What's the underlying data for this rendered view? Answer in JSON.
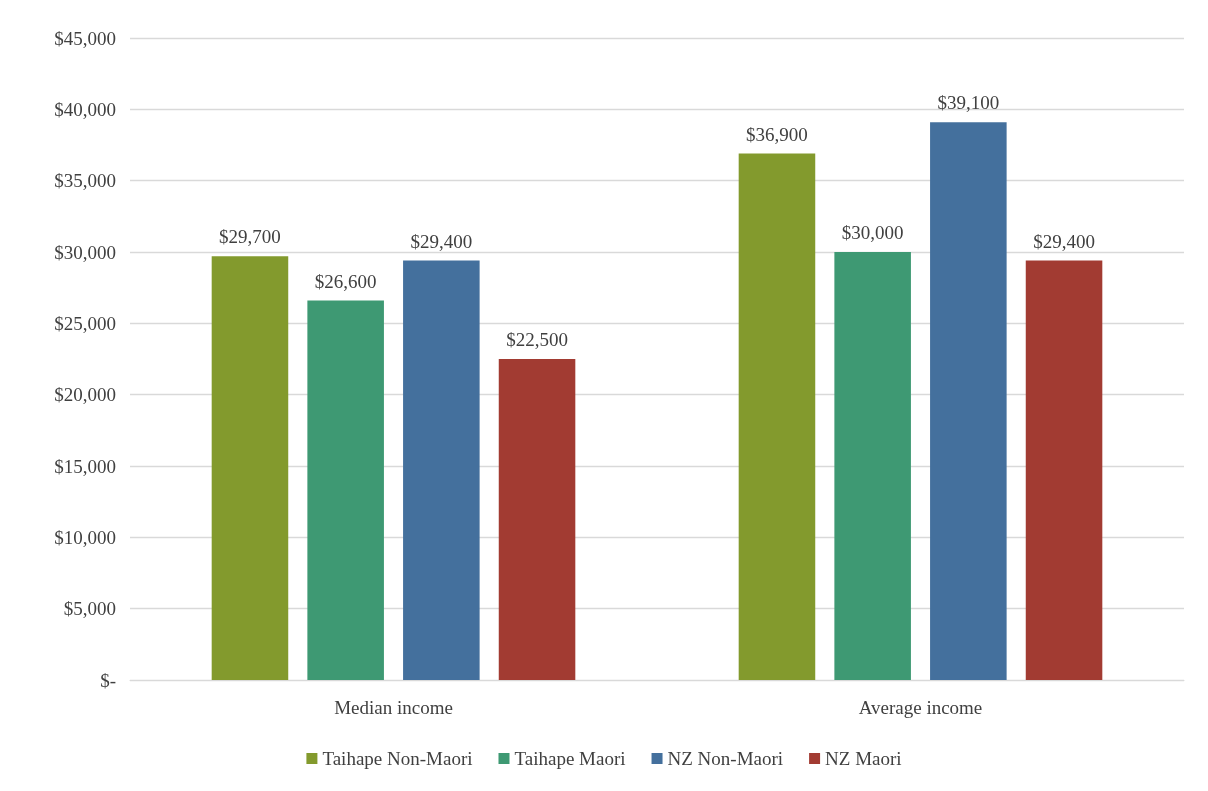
{
  "chart_data": {
    "type": "bar",
    "categories": [
      "Median income",
      "Average income"
    ],
    "series": [
      {
        "name": "Taihape Non-Maori",
        "color": "#839a2d",
        "values": [
          29700,
          36900
        ],
        "value_labels": [
          "$29,700",
          "$36,900"
        ]
      },
      {
        "name": "Taihape Maori",
        "color": "#3e9973",
        "values": [
          26600,
          30000
        ],
        "value_labels": [
          "$26,600",
          "$30,000"
        ]
      },
      {
        "name": "NZ Non-Maori",
        "color": "#44709d",
        "values": [
          29400,
          39100
        ],
        "value_labels": [
          "$29,400",
          "$39,100"
        ]
      },
      {
        "name": "NZ Maori",
        "color": "#a23b32",
        "values": [
          22500,
          29400
        ],
        "value_labels": [
          "$22,500",
          "$29,400"
        ]
      }
    ],
    "ylim": [
      0,
      45000
    ],
    "yticks": [
      {
        "value": 0,
        "label": "$-"
      },
      {
        "value": 5000,
        "label": "$5,000"
      },
      {
        "value": 10000,
        "label": "$10,000"
      },
      {
        "value": 15000,
        "label": "$15,000"
      },
      {
        "value": 20000,
        "label": "$20,000"
      },
      {
        "value": 25000,
        "label": "$25,000"
      },
      {
        "value": 30000,
        "label": "$30,000"
      },
      {
        "value": 35000,
        "label": "$35,000"
      },
      {
        "value": 40000,
        "label": "$40,000"
      },
      {
        "value": 45000,
        "label": "$45,000"
      }
    ],
    "grid": "y",
    "legend": "bottom"
  }
}
